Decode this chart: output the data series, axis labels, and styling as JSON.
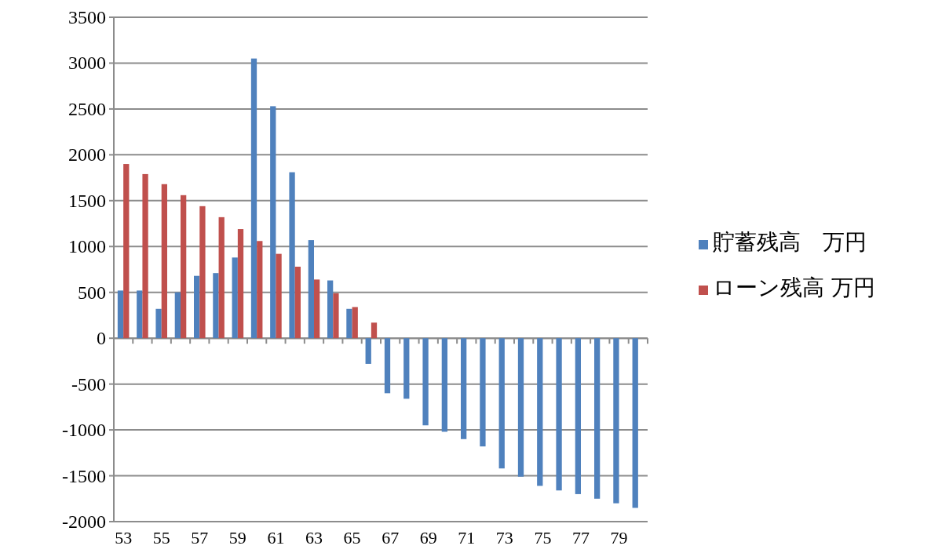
{
  "chart_data": {
    "type": "bar",
    "categories": [
      "53",
      null,
      "55",
      null,
      "57",
      null,
      "59",
      null,
      "61",
      null,
      "63",
      null,
      "65",
      null,
      "67",
      null,
      "69",
      null,
      "71",
      null,
      "73",
      null,
      "75",
      null,
      "77",
      null,
      "79",
      null
    ],
    "series": [
      {
        "name": "貯蓄残高　万円",
        "color": "#4f81bd",
        "values": [
          520,
          520,
          320,
          500,
          680,
          710,
          880,
          3050,
          2530,
          1810,
          1070,
          630,
          320,
          -280,
          -600,
          -660,
          -950,
          -1020,
          -1100,
          -1180,
          -1420,
          -1510,
          -1610,
          -1660,
          -1700,
          -1750,
          -1800,
          -1850
        ]
      },
      {
        "name": "ローン残高 万円",
        "color": "#c0504d",
        "values": [
          1900,
          1790,
          1680,
          1560,
          1440,
          1320,
          1190,
          1060,
          920,
          780,
          640,
          490,
          340,
          170,
          0,
          0,
          0,
          0,
          0,
          0,
          0,
          0,
          0,
          0,
          0,
          0,
          0,
          0
        ]
      }
    ],
    "ylim": [
      -2000,
      3500
    ],
    "yticks": [
      -2000,
      -1500,
      -1000,
      -500,
      0,
      500,
      1000,
      1500,
      2000,
      2500,
      3000,
      3500
    ],
    "grid": "y",
    "legend": "right"
  }
}
